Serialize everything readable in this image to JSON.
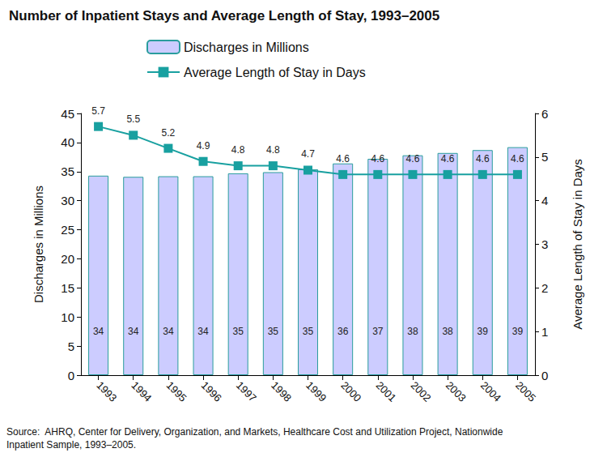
{
  "chart_data": {
    "type": "bar",
    "title": "Number of Inpatient Stays and Average Length of Stay, 1993–2005",
    "categories": [
      "1993",
      "1994",
      "1995",
      "1996",
      "1997",
      "1998",
      "1999",
      "2000",
      "2001",
      "2002",
      "2003",
      "2004",
      "2005"
    ],
    "series": [
      {
        "name": "Discharges in Millions",
        "type": "bar",
        "color": "#ccccff",
        "values": [
          34.3,
          34.1,
          34.2,
          34.2,
          34.7,
          34.9,
          35.4,
          36.4,
          37.2,
          37.8,
          38.2,
          38.7,
          39.2
        ],
        "value_labels": [
          "34",
          "34",
          "34",
          "34",
          "35",
          "35",
          "35",
          "36",
          "37",
          "38",
          "38",
          "39",
          "39"
        ]
      },
      {
        "name": "Average Length of Stay in Days",
        "type": "line",
        "axis": "y2",
        "color": "#18a0a0",
        "marker": "square",
        "line_style": "solid",
        "values": [
          5.7,
          5.5,
          5.2,
          4.9,
          4.8,
          4.8,
          4.7,
          4.6,
          4.6,
          4.6,
          4.6,
          4.6,
          4.6
        ]
      }
    ],
    "y_label": "Discharges in Millions",
    "y2_label": "Average Length of Stay in Days",
    "ylim": [
      0,
      45
    ],
    "yticks": [
      0,
      5,
      10,
      15,
      20,
      25,
      30,
      35,
      40,
      45
    ],
    "y2lim": [
      0,
      6
    ],
    "y2ticks": [
      0,
      1,
      2,
      3,
      4,
      5,
      6
    ],
    "data_labels": true,
    "grid": false,
    "legend": "top",
    "source": "Source:  AHRQ, Center for Delivery, Organization, and Markets, Healthcare Cost and Utilization Project, Nationwide Inpatient Sample, 1993–2005."
  }
}
